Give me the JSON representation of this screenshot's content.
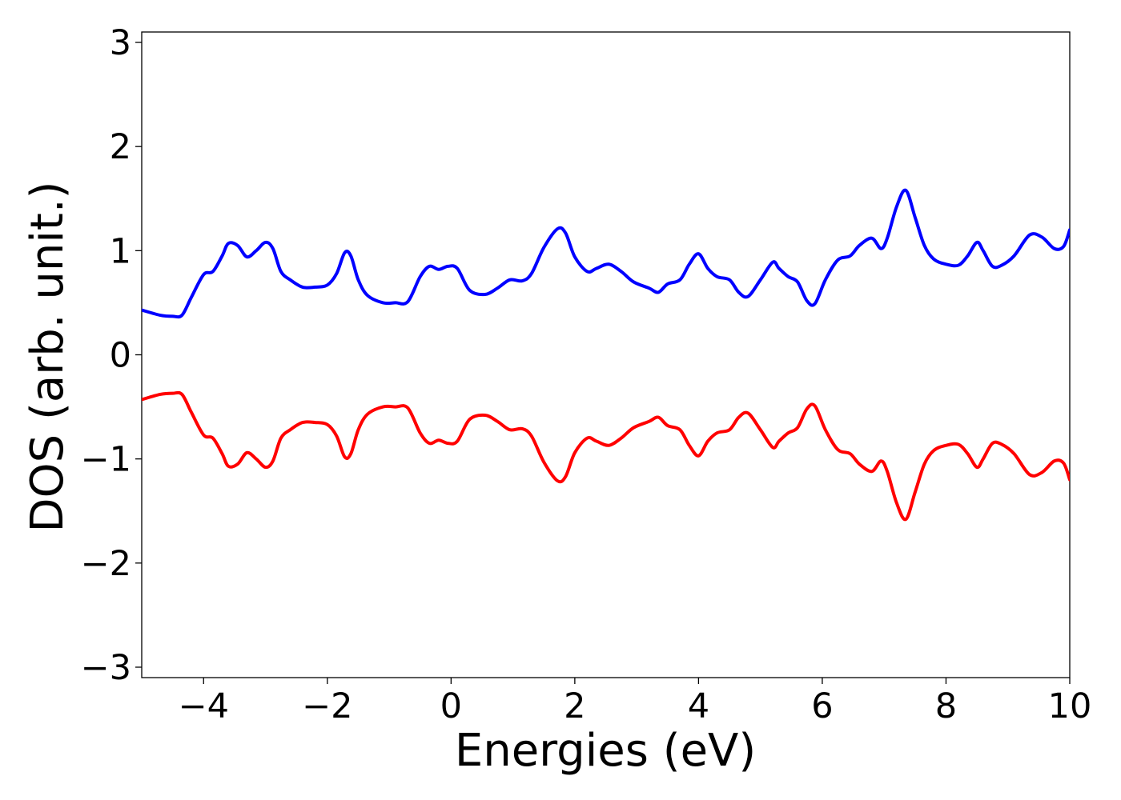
{
  "chart_data": {
    "type": "line",
    "xlabel": "Energies (eV)",
    "ylabel": "DOS (arb. unit.)",
    "xlim": [
      -5,
      10
    ],
    "ylim": [
      -3.1,
      3.1
    ],
    "grid": false,
    "xticks": [
      {
        "value": -4,
        "label": "−4"
      },
      {
        "value": -2,
        "label": "−2"
      },
      {
        "value": 0,
        "label": "0"
      },
      {
        "value": 2,
        "label": "2"
      },
      {
        "value": 4,
        "label": "4"
      },
      {
        "value": 6,
        "label": "6"
      },
      {
        "value": 8,
        "label": "8"
      },
      {
        "value": 10,
        "label": "10"
      }
    ],
    "yticks": [
      {
        "value": -3,
        "label": "−3"
      },
      {
        "value": -2,
        "label": "−2"
      },
      {
        "value": -1,
        "label": "−1"
      },
      {
        "value": 0,
        "label": "0"
      },
      {
        "value": 1,
        "label": "1"
      },
      {
        "value": 2,
        "label": "2"
      },
      {
        "value": 3,
        "label": "3"
      }
    ],
    "series": [
      {
        "color": "#0000ff",
        "x": [
          -5.0,
          -4.7,
          -4.5,
          -4.35,
          -4.2,
          -4.0,
          -3.85,
          -3.7,
          -3.6,
          -3.45,
          -3.3,
          -3.15,
          -3.0,
          -2.88,
          -2.75,
          -2.6,
          -2.4,
          -2.2,
          -2.0,
          -1.85,
          -1.72,
          -1.62,
          -1.5,
          -1.35,
          -1.1,
          -0.9,
          -0.7,
          -0.5,
          -0.35,
          -0.2,
          -0.05,
          0.1,
          0.3,
          0.55,
          0.75,
          0.95,
          1.15,
          1.3,
          1.5,
          1.72,
          1.85,
          2.0,
          2.2,
          2.35,
          2.55,
          2.75,
          2.95,
          3.2,
          3.35,
          3.5,
          3.7,
          3.85,
          4.0,
          4.15,
          4.3,
          4.5,
          4.65,
          4.8,
          5.0,
          5.2,
          5.3,
          5.45,
          5.6,
          5.75,
          5.88,
          6.05,
          6.25,
          6.45,
          6.6,
          6.8,
          6.95,
          7.05,
          7.2,
          7.35,
          7.5,
          7.65,
          7.8,
          8.0,
          8.2,
          8.35,
          8.5,
          8.6,
          8.75,
          8.9,
          9.1,
          9.35,
          9.55,
          9.75,
          9.9,
          10.0
        ],
        "y": [
          0.43,
          0.38,
          0.37,
          0.38,
          0.55,
          0.77,
          0.8,
          0.95,
          1.07,
          1.05,
          0.94,
          1.0,
          1.08,
          1.02,
          0.8,
          0.72,
          0.65,
          0.65,
          0.67,
          0.78,
          0.98,
          0.95,
          0.72,
          0.57,
          0.5,
          0.5,
          0.51,
          0.75,
          0.85,
          0.82,
          0.85,
          0.83,
          0.62,
          0.58,
          0.64,
          0.72,
          0.71,
          0.78,
          1.03,
          1.21,
          1.17,
          0.94,
          0.8,
          0.83,
          0.87,
          0.8,
          0.7,
          0.64,
          0.6,
          0.68,
          0.72,
          0.87,
          0.97,
          0.83,
          0.75,
          0.72,
          0.6,
          0.56,
          0.72,
          0.89,
          0.83,
          0.75,
          0.7,
          0.52,
          0.49,
          0.72,
          0.91,
          0.95,
          1.05,
          1.12,
          1.02,
          1.12,
          1.42,
          1.58,
          1.32,
          1.05,
          0.92,
          0.87,
          0.86,
          0.95,
          1.08,
          1.0,
          0.85,
          0.86,
          0.95,
          1.15,
          1.13,
          1.02,
          1.04,
          1.2
        ]
      },
      {
        "color": "#ff0000",
        "mirror_of_series": 0
      }
    ]
  }
}
